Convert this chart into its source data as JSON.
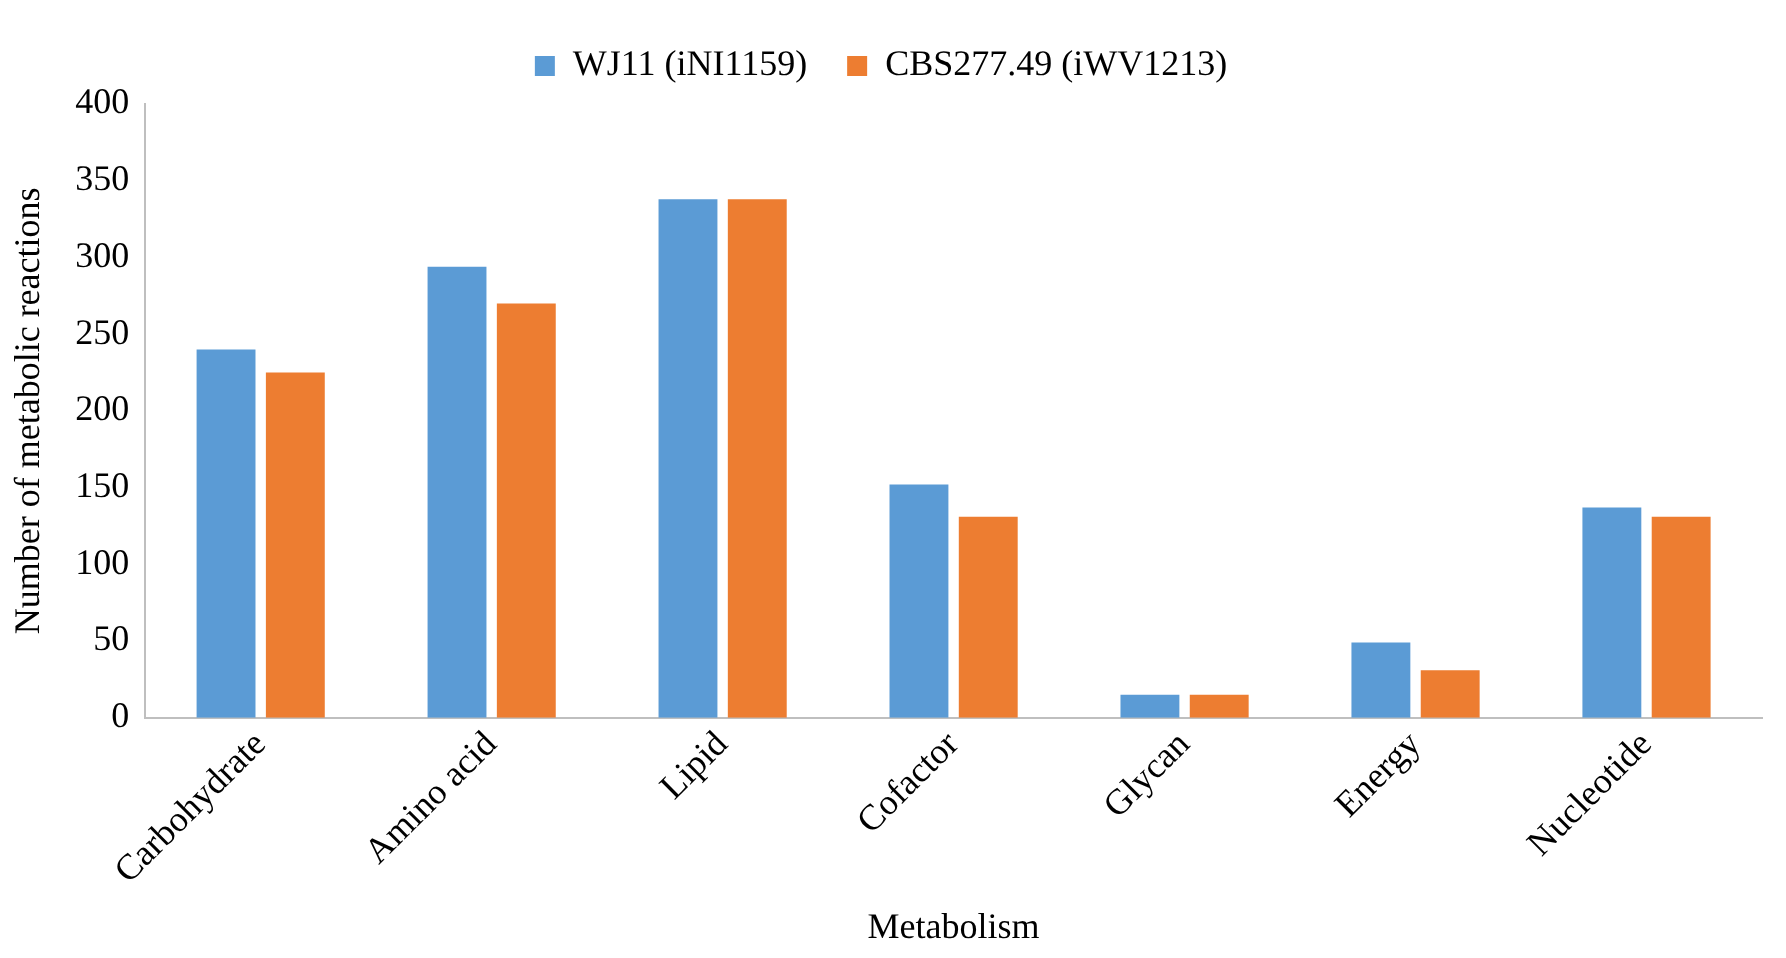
{
  "chart_data": {
    "type": "bar",
    "xlabel": "Metabolism",
    "ylabel": "Number of metabolic reactions",
    "categories": [
      "Carbohydrate",
      "Amino acid",
      "Lipid",
      "Cofactor",
      "Glycan",
      "Energy",
      "Nucleotide"
    ],
    "series": [
      {
        "name": "WJ11 (iNI1159)",
        "color": "#5b9bd5",
        "values": [
          240,
          294,
          338,
          152,
          15,
          49,
          137
        ]
      },
      {
        "name": "CBS277.49 (iWV1213)",
        "color": "#ed7d31",
        "values": [
          225,
          270,
          338,
          131,
          15,
          31,
          131
        ]
      }
    ],
    "ylim": [
      0,
      400
    ],
    "yticks": [
      0,
      50,
      100,
      150,
      200,
      250,
      300,
      350,
      400
    ],
    "grid": false,
    "legend": "top"
  }
}
